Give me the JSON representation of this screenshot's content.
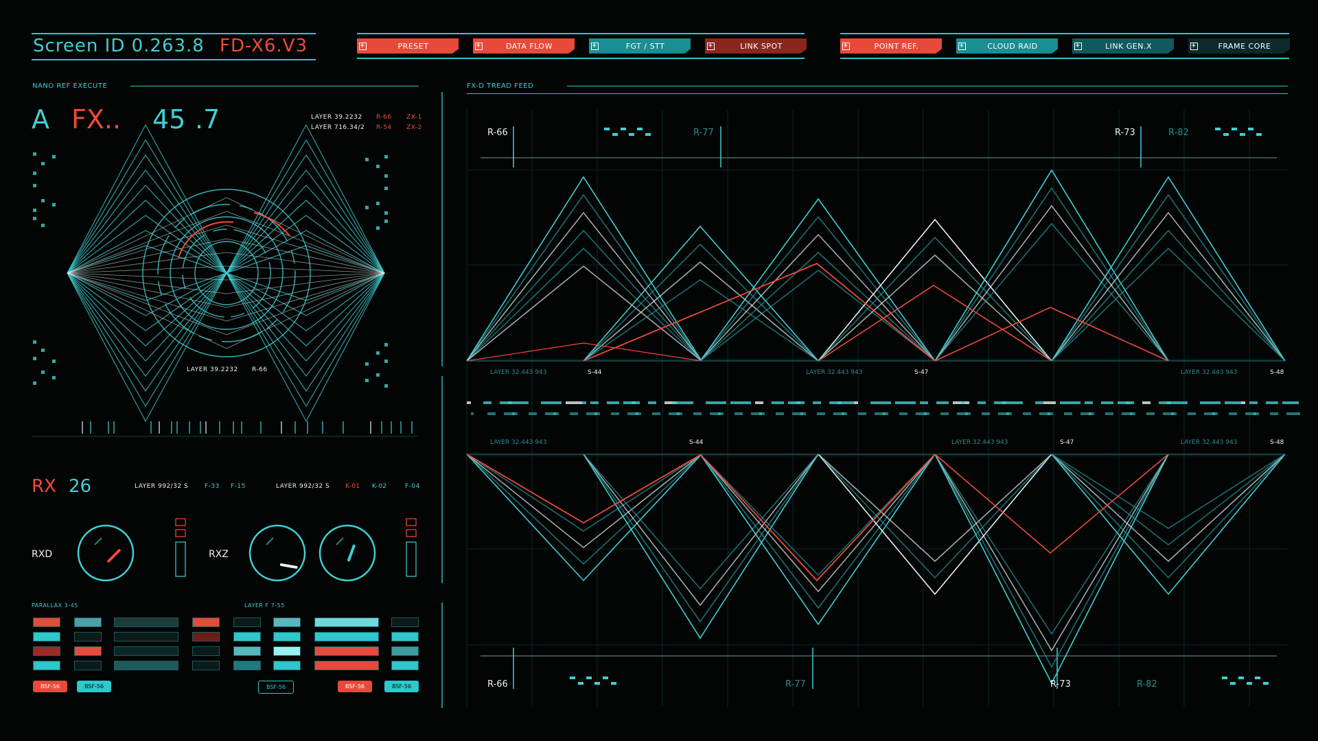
{
  "header": {
    "screen_id": "Screen ID 0.263.8",
    "code": "FD-X6.V3"
  },
  "tabs_left": [
    {
      "label": "PRESET",
      "style": "red-t"
    },
    {
      "label": "DATA FLOW",
      "style": "red-t"
    },
    {
      "label": "FGT / STT",
      "style": "teal-t"
    },
    {
      "label": "LINK SPOT",
      "style": "dred-t"
    }
  ],
  "tabs_right": [
    {
      "label": "POINT REF.",
      "style": "red-t"
    },
    {
      "label": "CLOUD RAID",
      "style": "teal-t"
    },
    {
      "label": "LINK GEN.X",
      "style": "dteal-t"
    },
    {
      "label": "FRAME CORE",
      "style": "dark-t"
    }
  ],
  "left_panel": {
    "title": "NANO REF EXECUTE",
    "big_a": "A",
    "big_fx": "FX..",
    "big_num": "45",
    "big_num2": ".7",
    "layer1": "LAYER 39.2232",
    "layer2": "LAYER 716.34/2",
    "r66": "R-66",
    "r54": "R-54",
    "zx1": "ZX-1",
    "zx2": "ZX-2",
    "center_layer": "LAYER 39.2232",
    "center_r": "R-66"
  },
  "rx_panel": {
    "title_rx": "RX",
    "title_num": "26",
    "layer_a": "LAYER 992/32 S",
    "f33": "F-33",
    "f15": "F-15",
    "layer_b": "LAYER 992/32 S",
    "k01": "K-01",
    "k02": "K-02",
    "f04": "F-04",
    "rxd": "RXD",
    "rxz": "RXZ",
    "parallax": "PARALLAX 3-45",
    "layer_f": "LAYER F 7-55",
    "badges": [
      "BSF-56",
      "BSF-56",
      "BSF-56",
      "BSF-56",
      "BSF-56"
    ]
  },
  "right_panel": {
    "title": "FX-D TREAD FEED",
    "markers_top": [
      "R-66",
      "R-77",
      "R-73",
      "R-82"
    ],
    "markers_bottom": [
      "R-66",
      "R-77",
      "R-73",
      "R-82"
    ],
    "labels_mid_top": [
      "LAYER 32.443 943",
      "S-44",
      "LAYER 32.443 943",
      "S-47",
      "LAYER 32.443 943",
      "S-48"
    ],
    "labels_mid_bottom": [
      "LAYER 32.443 943",
      "S-44",
      "LAYER 32.443 943",
      "S-47",
      "LAYER 32.443 943",
      "S-48"
    ]
  },
  "colors": {
    "cyan": "#3fd0d4",
    "red": "#f04a3a",
    "white": "#e8f2f2",
    "bg": "#030505"
  }
}
